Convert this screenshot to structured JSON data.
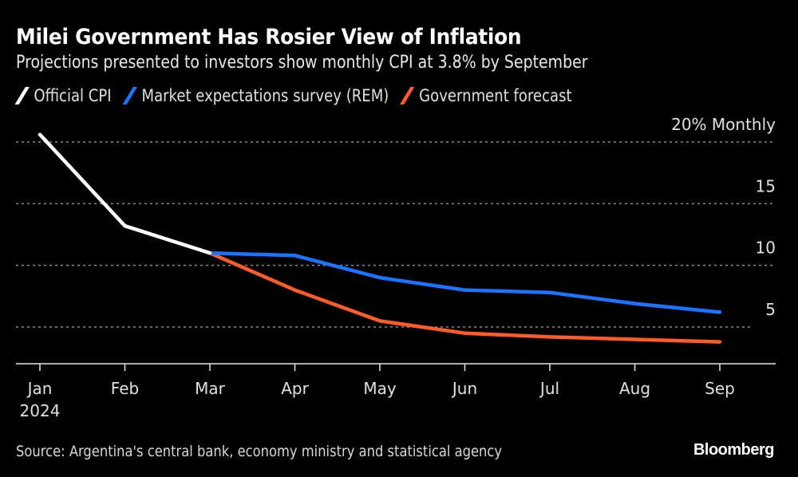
{
  "header": {
    "title": "Milei Government Has Rosier View of Inflation",
    "subtitle": "Projections presented to investors show monthly CPI at 3.8% by September"
  },
  "footer": {
    "source": "Source: Argentina's central bank, economy ministry and statistical agency",
    "brand": "Bloomberg"
  },
  "chart_data": {
    "type": "line",
    "title": "Milei Government Has Rosier View of Inflation",
    "subtitle": "Projections presented to investors show monthly CPI at 3.8% by September",
    "xlabel": "",
    "ylabel": "% Monthly",
    "categories": [
      "Jan",
      "Feb",
      "Mar",
      "Apr",
      "May",
      "Jun",
      "Jul",
      "Aug",
      "Sep"
    ],
    "x_tick_labels": [
      "Jan\n2024",
      "Feb",
      "Mar",
      "Apr",
      "May",
      "Jun",
      "Jul",
      "Aug",
      "Sep"
    ],
    "year_label": "2024",
    "y_ticks": [
      5,
      10,
      15,
      20
    ],
    "y_tick_labels": [
      "5",
      "10",
      "15",
      "20% Monthly"
    ],
    "ylim": [
      2,
      21
    ],
    "grid": true,
    "legend_position": "top-left",
    "series": [
      {
        "name": "Official CPI",
        "color": "#ffffff",
        "values": [
          20.6,
          13.2,
          11.0,
          null,
          null,
          null,
          null,
          null,
          null
        ]
      },
      {
        "name": "Market expectations survey (REM)",
        "color": "#1a74ff",
        "values": [
          null,
          null,
          11.0,
          10.8,
          9.0,
          8.0,
          7.8,
          6.9,
          6.2
        ]
      },
      {
        "name": "Government forecast",
        "color": "#ff5b26",
        "values": [
          null,
          null,
          11.0,
          8.0,
          5.5,
          4.5,
          4.2,
          4.0,
          3.8
        ]
      }
    ]
  }
}
